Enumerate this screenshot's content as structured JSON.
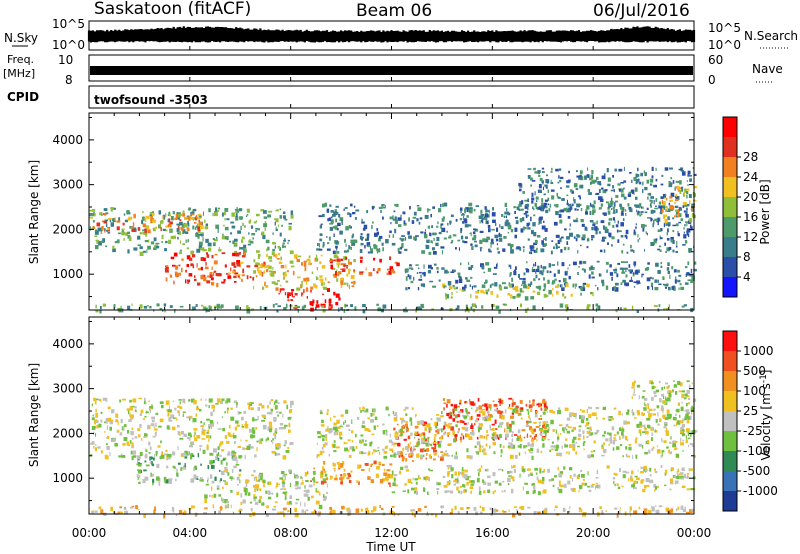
{
  "header": {
    "station": "Saskatoon (fitACF)",
    "beam": "Beam 06",
    "date": "06/Jul/2016"
  },
  "panels": {
    "nsky_label": "N.Sky",
    "nsky_ticks": [
      "10^5",
      "10^0"
    ],
    "nsearch_label": "N.Search",
    "nsearch_ticks": [
      "10^5",
      "10^0"
    ],
    "freq_label": "Freq.",
    "freq_unit": "[MHz]",
    "freq_ticks": [
      "10",
      "8"
    ],
    "nave_label": "Nave",
    "nave_ticks": [
      "60",
      "0"
    ],
    "cpid_label": "CPID",
    "cpid_value": "twofsound -3503"
  },
  "chart_data": [
    {
      "type": "heatmap",
      "name": "power",
      "ylabel": "Slant Range [km]",
      "y_ticks": [
        1000,
        2000,
        3000,
        4000
      ],
      "ylim": [
        200,
        4600
      ],
      "x_ticks": [
        "00:00",
        "04:00",
        "08:00",
        "12:00",
        "16:00",
        "20:00",
        "00:00"
      ],
      "xlim_hours": [
        0,
        24
      ],
      "colorbar_label": "Power [dB]",
      "colorbar_ticks": [
        "4",
        "8",
        "12",
        "16",
        "20",
        "24",
        "28"
      ],
      "colors": [
        "#1414ff",
        "#2b4fa8",
        "#3a7d8a",
        "#4e9a6a",
        "#8fbf3a",
        "#f0c020",
        "#f08020",
        "#e03020",
        "#ff0000"
      ],
      "regions": [
        {
          "t0": 0.0,
          "t1": 8.0,
          "r0": 1500,
          "r1": 2500,
          "level": 3
        },
        {
          "t0": 0.0,
          "t1": 4.5,
          "r0": 2000,
          "r1": 2400,
          "level": 6
        },
        {
          "t0": 3.0,
          "t1": 6.2,
          "r0": 800,
          "r1": 1500,
          "level": 7
        },
        {
          "t0": 5.5,
          "t1": 7.0,
          "r0": 900,
          "r1": 1300,
          "level": 6
        },
        {
          "t0": 6.5,
          "t1": 10.5,
          "r0": 700,
          "r1": 1500,
          "level": 5
        },
        {
          "t0": 7.5,
          "t1": 10.0,
          "r0": 250,
          "r1": 700,
          "level": 8
        },
        {
          "t0": 9.5,
          "t1": 12.2,
          "r0": 1000,
          "r1": 1400,
          "level": 7
        },
        {
          "t0": 9.0,
          "t1": 24.0,
          "r0": 1500,
          "r1": 2600,
          "level": 2
        },
        {
          "t0": 12.5,
          "t1": 24.0,
          "r0": 700,
          "r1": 1300,
          "level": 2
        },
        {
          "t0": 14.0,
          "t1": 20.0,
          "r0": 500,
          "r1": 800,
          "level": 4
        },
        {
          "t0": 17.0,
          "t1": 24.0,
          "r0": 2400,
          "r1": 3400,
          "level": 2
        },
        {
          "t0": 22.5,
          "t1": 24.0,
          "r0": 2200,
          "r1": 3000,
          "level": 5
        },
        {
          "t0": 0.0,
          "t1": 24.0,
          "r0": 200,
          "r1": 350,
          "level": 3
        }
      ]
    },
    {
      "type": "heatmap",
      "name": "velocity",
      "ylabel": "Slant Range [km]",
      "y_ticks": [
        1000,
        2000,
        3000,
        4000
      ],
      "ylim": [
        200,
        4600
      ],
      "x_ticks": [
        "00:00",
        "04:00",
        "08:00",
        "12:00",
        "16:00",
        "20:00",
        "00:00"
      ],
      "xlim_hours": [
        0,
        24
      ],
      "xlabel": "Time UT",
      "colorbar_label": "Velocity [m s",
      "colorbar_label_sup": "-1",
      "colorbar_label_end": "]",
      "colorbar_ticks": [
        "1000",
        "500",
        "100",
        "25",
        "-25",
        "-100",
        "-500",
        "-1000"
      ],
      "colors": [
        "#1e3c96",
        "#3a72b8",
        "#2f8a55",
        "#70c040",
        "#c0c0c0",
        "#f0c020",
        "#f09020",
        "#f05020",
        "#ff1010"
      ],
      "regions": [
        {
          "t0": 0.0,
          "t1": 8.0,
          "r0": 1500,
          "r1": 2800,
          "level": 4
        },
        {
          "t0": 1.8,
          "t1": 6.0,
          "r0": 900,
          "r1": 1600,
          "level": 3
        },
        {
          "t0": 4.5,
          "t1": 9.5,
          "r0": 400,
          "r1": 1200,
          "level": 4
        },
        {
          "t0": 8.5,
          "t1": 12.0,
          "r0": 900,
          "r1": 1400,
          "level": 6
        },
        {
          "t0": 12.0,
          "t1": 14.0,
          "r0": 1400,
          "r1": 2300,
          "level": 7
        },
        {
          "t0": 14.0,
          "t1": 18.2,
          "r0": 1900,
          "r1": 2800,
          "level": 7
        },
        {
          "t0": 9.0,
          "t1": 24.0,
          "r0": 1500,
          "r1": 2600,
          "level": 4
        },
        {
          "t0": 12.0,
          "t1": 24.0,
          "r0": 700,
          "r1": 1300,
          "level": 4
        },
        {
          "t0": 21.5,
          "t1": 24.0,
          "r0": 2000,
          "r1": 3200,
          "level": 4
        },
        {
          "t0": 0.0,
          "t1": 24.0,
          "r0": 200,
          "r1": 400,
          "level": 5
        }
      ]
    }
  ]
}
